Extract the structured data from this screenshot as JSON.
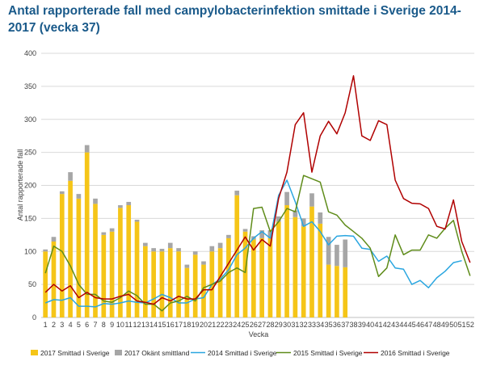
{
  "chart_data": {
    "type": "bar+line",
    "title": "Antal rapporterade fall med campylobacterinfektion smittade i Sverige 2014-2017 (vecka 37)",
    "xlabel": "Vecka",
    "ylabel": "Antal rapporterade fall",
    "ylim": [
      0,
      400
    ],
    "yticks": [
      0,
      50,
      100,
      150,
      200,
      250,
      300,
      350,
      400
    ],
    "grid": true,
    "legend_position": "bottom",
    "categories": [
      1,
      2,
      3,
      4,
      5,
      6,
      7,
      8,
      9,
      10,
      11,
      12,
      13,
      14,
      15,
      16,
      17,
      18,
      19,
      20,
      21,
      22,
      23,
      24,
      25,
      26,
      27,
      28,
      29,
      30,
      31,
      32,
      33,
      34,
      35,
      36,
      37,
      38,
      39,
      40,
      41,
      42,
      43,
      44,
      45,
      46,
      47,
      48,
      49,
      50,
      51,
      52
    ],
    "bars_stacked": [
      {
        "name": "2017 Smittad i Sverige",
        "color": "#f5c518",
        "values": [
          100,
          115,
          187,
          207,
          180,
          250,
          172,
          125,
          130,
          166,
          170,
          145,
          108,
          100,
          100,
          105,
          100,
          75,
          95,
          80,
          100,
          105,
          120,
          185,
          130,
          118,
          120,
          120,
          145,
          170,
          152,
          138,
          168,
          142,
          80,
          78,
          76
        ]
      },
      {
        "name": "2017 Okänt smittland",
        "color": "#a6a6a6",
        "values": [
          3,
          7,
          4,
          13,
          7,
          11,
          8,
          4,
          5,
          4,
          5,
          3,
          5,
          5,
          4,
          8,
          5,
          5,
          5,
          5,
          8,
          8,
          5,
          7,
          4,
          5,
          12,
          12,
          8,
          20,
          10,
          12,
          20,
          17,
          42,
          32,
          42
        ]
      }
    ],
    "series": [
      {
        "name": "2014 Smittad i Sverige",
        "color": "#2aa6e0",
        "values": [
          22,
          27,
          26,
          30,
          17,
          17,
          16,
          21,
          20,
          22,
          25,
          23,
          22,
          28,
          35,
          30,
          22,
          22,
          28,
          30,
          50,
          58,
          72,
          95,
          105,
          120,
          130,
          120,
          185,
          208,
          175,
          138,
          145,
          130,
          110,
          123,
          124,
          123,
          105,
          103,
          85,
          93,
          75,
          73,
          50,
          56,
          45,
          60,
          70,
          83,
          86,
          null
        ]
      },
      {
        "name": "2015 Smittad i Sverige",
        "color": "#5f8c1a",
        "values": [
          67,
          108,
          100,
          78,
          50,
          35,
          35,
          25,
          23,
          30,
          40,
          33,
          20,
          20,
          10,
          22,
          25,
          32,
          25,
          45,
          50,
          55,
          68,
          75,
          68,
          165,
          167,
          130,
          145,
          165,
          160,
          215,
          210,
          205,
          160,
          155,
          140,
          130,
          120,
          105,
          62,
          75,
          125,
          95,
          102,
          102,
          125,
          120,
          135,
          147,
          100,
          63
        ]
      },
      {
        "name": "2016 Smittad i Sverige",
        "color": "#b00000",
        "values": [
          38,
          50,
          40,
          48,
          30,
          38,
          30,
          28,
          28,
          32,
          35,
          25,
          23,
          20,
          30,
          25,
          32,
          28,
          28,
          42,
          42,
          62,
          82,
          102,
          122,
          102,
          118,
          108,
          180,
          220,
          292,
          310,
          220,
          275,
          297,
          278,
          310,
          366,
          275,
          268,
          298,
          292,
          208,
          180,
          173,
          172,
          165,
          138,
          134,
          178,
          115,
          83
        ]
      }
    ]
  }
}
